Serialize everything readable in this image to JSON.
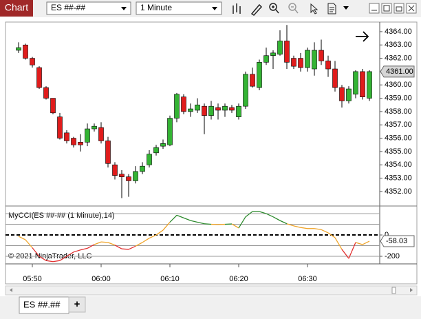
{
  "app": {
    "title": "Chart",
    "instrument": "ES ##-##",
    "interval": "1 Minute",
    "tabs": [
      "ES ##.##"
    ],
    "add_tab": "+",
    "footer": "© 2021 NinjaTrader, LLC"
  },
  "chart_data": [
    {
      "type": "candlestick",
      "open": [
        4362.6,
        4363.0,
        4362.0,
        4361.3,
        4359.8,
        4359.0,
        4357.6,
        4356.4,
        4356.0,
        4355.7,
        4355.7,
        4356.7,
        4356.8,
        4355.8,
        4354.0,
        4353.3,
        4353.1,
        4352.8,
        4353.5,
        4354.0,
        4354.9,
        4355.4,
        4355.5,
        4357.5,
        4359.1,
        4358.0,
        4358.1,
        4358.4,
        4357.7,
        4358.3,
        4358.1,
        4358.3,
        4357.6,
        4358.4,
        4360.8,
        4359.8,
        4361.7,
        4362.2,
        4362.3,
        4363.3,
        4362.0,
        4362.0,
        4361.3,
        4361.2,
        4362.6,
        4361.8,
        4361.2,
        4359.8,
        4358.8,
        4359.3,
        4361.0,
        4359.0
      ],
      "high": [
        4363.2,
        4363.1,
        4362.1,
        4361.4,
        4359.9,
        4359.0,
        4357.9,
        4356.6,
        4356.1,
        4356.3,
        4357.1,
        4357.1,
        4357.2,
        4356.1,
        4354.2,
        4353.6,
        4353.3,
        4353.9,
        4354.2,
        4355.1,
        4355.5,
        4355.9,
        4357.7,
        4359.4,
        4359.3,
        4358.6,
        4359.0,
        4358.6,
        4358.8,
        4358.6,
        4358.6,
        4358.5,
        4358.6,
        4361.0,
        4361.3,
        4361.9,
        4362.8,
        4362.6,
        4364.1,
        4364.5,
        4362.2,
        4362.4,
        4362.8,
        4363.2,
        4363.4,
        4362.2,
        4361.8,
        4360.0,
        4359.9,
        4361.1,
        4361.2,
        4361.1
      ],
      "low": [
        4362.4,
        4361.9,
        4361.3,
        4359.7,
        4358.9,
        4357.8,
        4355.9,
        4355.6,
        4355.3,
        4355.0,
        4355.4,
        4356.5,
        4355.6,
        4353.8,
        4352.9,
        4351.5,
        4351.6,
        4352.6,
        4353.3,
        4353.8,
        4354.7,
        4355.2,
        4355.4,
        4357.2,
        4357.8,
        4357.6,
        4357.9,
        4356.3,
        4357.4,
        4357.4,
        4357.6,
        4357.9,
        4357.4,
        4358.2,
        4359.8,
        4359.6,
        4361.5,
        4361.2,
        4362.2,
        4361.2,
        4361.2,
        4361.0,
        4361.0,
        4360.7,
        4361.5,
        4360.6,
        4359.5,
        4358.3,
        4358.6,
        4359.0,
        4358.9,
        4358.8
      ],
      "close": [
        4362.8,
        4362.0,
        4361.5,
        4359.8,
        4359.0,
        4357.9,
        4356.0,
        4355.8,
        4355.5,
        4355.5,
        4356.7,
        4356.9,
        4355.8,
        4354.1,
        4353.2,
        4353.1,
        4352.8,
        4353.5,
        4353.9,
        4354.8,
        4355.3,
        4355.6,
        4357.5,
        4359.3,
        4358.0,
        4358.2,
        4358.5,
        4357.7,
        4358.4,
        4358.1,
        4358.4,
        4358.1,
        4358.4,
        4360.8,
        4359.9,
        4361.7,
        4362.2,
        4362.4,
        4363.3,
        4361.7,
        4361.4,
        4361.3,
        4362.6,
        4362.6,
        4361.8,
        4361.2,
        4359.8,
        4358.8,
        4359.7,
        4361.0,
        4359.1,
        4361.0
      ],
      "up_color": "#34b434",
      "down_color": "#e01c1c",
      "xlim": [
        -1.9,
        52.5
      ],
      "xticks": [
        {
          "value": 2,
          "label": "05:50"
        },
        {
          "value": 12,
          "label": "06:00"
        },
        {
          "value": 22,
          "label": "06:10"
        },
        {
          "value": 32,
          "label": "06:20"
        },
        {
          "value": 42,
          "label": "06:30"
        }
      ],
      "ylim": [
        4350.96,
        4364.72
      ],
      "yticks": [
        {
          "value": 4352,
          "label": "4352.00"
        },
        {
          "value": 4353,
          "label": "4353.00"
        },
        {
          "value": 4354,
          "label": "4354.00"
        },
        {
          "value": 4355,
          "label": "4355.00"
        },
        {
          "value": 4356,
          "label": "4356.00"
        },
        {
          "value": 4357,
          "label": "4357.00"
        },
        {
          "value": 4358,
          "label": "4358.00"
        },
        {
          "value": 4359,
          "label": "4359.00"
        },
        {
          "value": 4360,
          "label": "4360.00"
        },
        {
          "value": 4361,
          "label": "4361.00"
        },
        {
          "value": 4362,
          "label": "4362.00"
        },
        {
          "value": 4363,
          "label": "4363.00"
        },
        {
          "value": 4364,
          "label": "4364.00"
        }
      ],
      "last_price": {
        "value": 4361,
        "label": "4361.00"
      },
      "grid": false
    },
    {
      "type": "line",
      "title": "MyCCI(ES ##-## (1 Minute),14)",
      "values": [
        -13,
        -45,
        -120,
        -200,
        -240,
        -250,
        -240,
        -200,
        -160,
        -140,
        -125,
        -90,
        -65,
        -70,
        -95,
        -130,
        -135,
        -105,
        -70,
        -30,
        0,
        45,
        120,
        185,
        160,
        135,
        120,
        105,
        100,
        98,
        100,
        103,
        65,
        170,
        220,
        220,
        200,
        170,
        135,
        105,
        85,
        70,
        60,
        60,
        50,
        20,
        -25,
        -135,
        -220,
        -70,
        -90,
        -58.03
      ],
      "color": "#f0a428",
      "color_bands": [
        {
          "above": 100,
          "color": "#2e8b2e"
        },
        {
          "below": -100,
          "color": "#e23030"
        }
      ],
      "levels": [
        200,
        100,
        -100,
        -200
      ],
      "zero_line_dashed": true,
      "xlim": [
        -1.9,
        52.5
      ],
      "ylim": [
        -271,
        265
      ],
      "yticks": [
        0,
        -200
      ],
      "last": {
        "value": -58.03,
        "label": "-58.03"
      }
    }
  ]
}
